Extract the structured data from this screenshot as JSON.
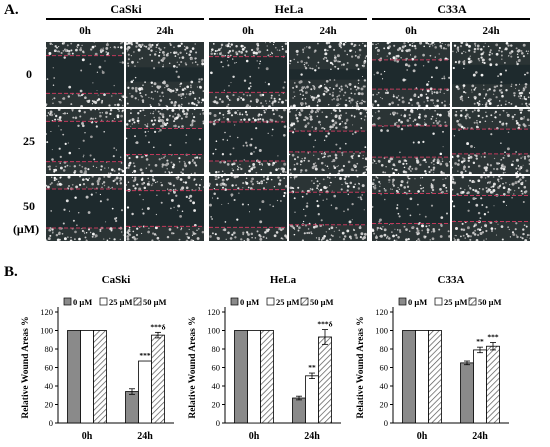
{
  "figure": {
    "panel_a_label": "A.",
    "panel_b_label": "B.",
    "cell_lines": [
      "CaSki",
      "HeLa",
      "C33A"
    ],
    "time_points": [
      "0h",
      "24h"
    ],
    "concentrations": [
      "0",
      "25",
      "50"
    ],
    "concentration_unit": "(μM)"
  },
  "chart_data": [
    {
      "type": "bar",
      "title": "CaSki",
      "ylabel": "Relative Wound Areas %",
      "xlabel": "",
      "ylim": [
        0,
        120
      ],
      "yticks": [
        0,
        20,
        40,
        60,
        80,
        100,
        120
      ],
      "categories": [
        "0h",
        "24h"
      ],
      "series": [
        {
          "name": "0 μM",
          "values": [
            100,
            34
          ],
          "errors": [
            0,
            3
          ],
          "annotations": [
            "",
            ""
          ]
        },
        {
          "name": "25 μM",
          "values": [
            100,
            67
          ],
          "errors": [
            0,
            0
          ],
          "annotations": [
            "",
            "***"
          ]
        },
        {
          "name": "50 μM",
          "values": [
            100,
            95
          ],
          "errors": [
            0,
            3
          ],
          "annotations": [
            "",
            "***δ"
          ]
        }
      ],
      "legend_position": "top",
      "grid": false
    },
    {
      "type": "bar",
      "title": "HeLa",
      "ylabel": "Relative Wound Areas %",
      "xlabel": "",
      "ylim": [
        0,
        120
      ],
      "yticks": [
        0,
        20,
        40,
        60,
        80,
        100,
        120
      ],
      "categories": [
        "0h",
        "24h"
      ],
      "series": [
        {
          "name": "0 μM",
          "values": [
            100,
            27
          ],
          "errors": [
            0,
            2
          ],
          "annotations": [
            "",
            ""
          ]
        },
        {
          "name": "25 μM",
          "values": [
            100,
            51
          ],
          "errors": [
            0,
            3
          ],
          "annotations": [
            "",
            "**"
          ]
        },
        {
          "name": "50 μM",
          "values": [
            100,
            93
          ],
          "errors": [
            0,
            8
          ],
          "annotations": [
            "",
            "***δ"
          ]
        }
      ],
      "legend_position": "top",
      "grid": false
    },
    {
      "type": "bar",
      "title": "C33A",
      "ylabel": "Relative Wound Areas %",
      "xlabel": "",
      "ylim": [
        0,
        120
      ],
      "yticks": [
        0,
        20,
        40,
        60,
        80,
        100,
        120
      ],
      "categories": [
        "0h",
        "24h"
      ],
      "series": [
        {
          "name": "0 μM",
          "values": [
            100,
            65
          ],
          "errors": [
            0,
            2
          ],
          "annotations": [
            "",
            ""
          ]
        },
        {
          "name": "25 μM",
          "values": [
            100,
            79
          ],
          "errors": [
            0,
            3
          ],
          "annotations": [
            "",
            "**"
          ]
        },
        {
          "name": "50 μM",
          "values": [
            100,
            83
          ],
          "errors": [
            0,
            4
          ],
          "annotations": [
            "",
            "***"
          ]
        }
      ],
      "legend_position": "top",
      "grid": false
    }
  ]
}
